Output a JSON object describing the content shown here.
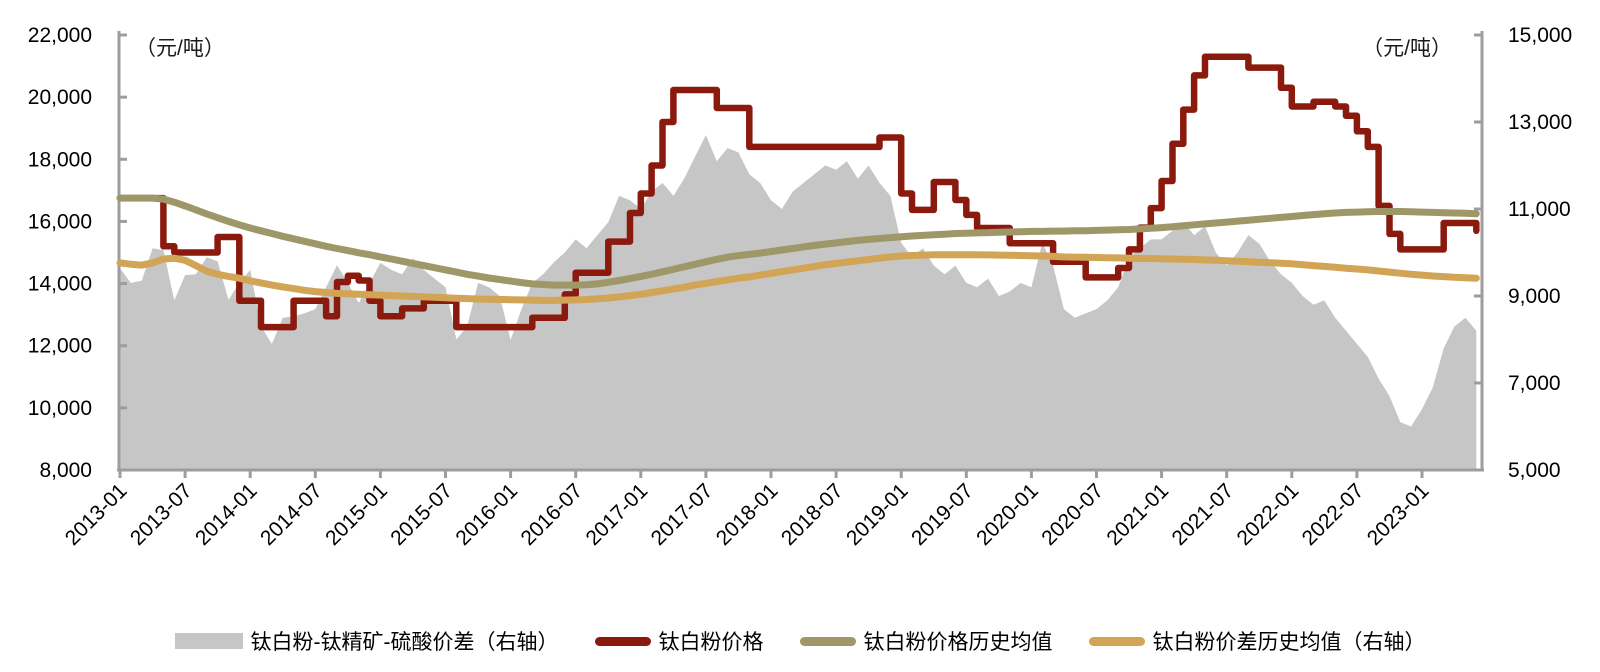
{
  "chart_data": {
    "type": "area+line",
    "title": "",
    "unit_label_left": "（元/吨）",
    "unit_label_right": "（元/吨）",
    "x_start": "2013-01",
    "x_end": "2023-06",
    "x_tick_interval_months": 6,
    "x_tick_labels": [
      "2013-01",
      "2013-07",
      "2014-01",
      "2014-07",
      "2015-01",
      "2015-07",
      "2016-01",
      "2016-07",
      "2017-01",
      "2017-07",
      "2018-01",
      "2018-07",
      "2019-01",
      "2019-07",
      "2020-01",
      "2020-07",
      "2021-01",
      "2021-07",
      "2022-01",
      "2022-07",
      "2023-01"
    ],
    "left_axis": {
      "min": 8000,
      "max": 22000,
      "tick_step": 2000,
      "tick_labels": [
        "22,000",
        "20,000",
        "18,000",
        "16,000",
        "14,000",
        "12,000",
        "10,000",
        "8,000"
      ]
    },
    "right_axis": {
      "min": 5000,
      "max": 15000,
      "tick_step": 2000,
      "tick_labels": [
        "15,000",
        "13,000",
        "11,000",
        "9,000",
        "7,000",
        "5,000"
      ]
    },
    "grid": "off",
    "legend_position": "bottom-center",
    "axis_color": "#9d9d9d",
    "series": [
      {
        "name": "钛白粉-钛精矿-硫酸价差（右轴）",
        "axis": "right",
        "style": "area",
        "color": "#c6c6c6",
        "values": [
          9640,
          9300,
          9350,
          10100,
          10050,
          8900,
          9480,
          9500,
          9890,
          9800,
          8910,
          9300,
          9600,
          8300,
          7900,
          8500,
          8530,
          8600,
          8700,
          9200,
          9710,
          9300,
          8840,
          9300,
          9760,
          9600,
          9500,
          9870,
          9600,
          9400,
          9200,
          8000,
          8300,
          9300,
          9200,
          9000,
          7990,
          8700,
          9300,
          9500,
          9780,
          10000,
          10300,
          10100,
          10400,
          10700,
          11300,
          11200,
          11000,
          11400,
          11600,
          11300,
          11700,
          12200,
          12700,
          12100,
          12400,
          12300,
          11800,
          11600,
          11200,
          11000,
          11400,
          11600,
          11800,
          12000,
          11900,
          12100,
          11700,
          12000,
          11600,
          11300,
          10220,
          9900,
          10100,
          9700,
          9500,
          9700,
          9300,
          9200,
          9400,
          9000,
          9100,
          9300,
          9200,
          10220,
          9700,
          8700,
          8500,
          8600,
          8700,
          8900,
          9200,
          9870,
          10100,
          10300,
          10300,
          10500,
          10700,
          10400,
          10600,
          10000,
          9700,
          10000,
          10400,
          10200,
          9800,
          9500,
          9300,
          9000,
          8800,
          8900,
          8500,
          8200,
          7900,
          7600,
          7100,
          6700,
          6100,
          6000,
          6400,
          6900,
          7800,
          8300,
          8500,
          8200
        ]
      },
      {
        "name": "钛白粉价格",
        "axis": "left",
        "style": "step",
        "color": "#8b1a0e",
        "values": [
          16750,
          16750,
          16750,
          16750,
          15200,
          15000,
          15000,
          15000,
          15000,
          15500,
          15500,
          13450,
          13450,
          12600,
          12600,
          12600,
          13450,
          13450,
          13450,
          12950,
          14050,
          14250,
          14100,
          13450,
          12950,
          12950,
          13200,
          13200,
          13450,
          13450,
          13450,
          12600,
          12600,
          12600,
          12600,
          12600,
          12600,
          12600,
          12900,
          12900,
          12900,
          13650,
          14350,
          14350,
          14350,
          15350,
          15350,
          16270,
          16900,
          17800,
          19200,
          20230,
          20230,
          20230,
          20230,
          19650,
          19650,
          19650,
          18400,
          18400,
          18400,
          18400,
          18400,
          18400,
          18400,
          18400,
          18400,
          18400,
          18400,
          18400,
          18700,
          18700,
          16900,
          16370,
          16370,
          17270,
          17270,
          16690,
          16210,
          15790,
          15790,
          15790,
          15300,
          15300,
          15300,
          15300,
          14700,
          14700,
          14700,
          14200,
          14200,
          14200,
          14500,
          15100,
          15800,
          16430,
          17300,
          18500,
          19600,
          20700,
          21300,
          21300,
          21300,
          21300,
          20950,
          20950,
          20950,
          20300,
          19700,
          19700,
          19850,
          19850,
          19700,
          19400,
          18900,
          18400,
          16500,
          15600,
          15100,
          15100,
          15100,
          15100,
          15950,
          15950,
          15950,
          15700
        ]
      },
      {
        "name": "钛白粉价格历史均值",
        "axis": "left",
        "style": "line",
        "color": "#9e9768",
        "values": [
          16750,
          16750,
          16750,
          16750,
          16720,
          16620,
          16500,
          16370,
          16240,
          16120,
          16000,
          15890,
          15790,
          15700,
          15610,
          15520,
          15440,
          15360,
          15280,
          15200,
          15130,
          15060,
          14990,
          14930,
          14860,
          14790,
          14720,
          14650,
          14580,
          14510,
          14440,
          14370,
          14300,
          14240,
          14180,
          14130,
          14080,
          14030,
          13990,
          13970,
          13950,
          13950,
          13950,
          13960,
          13990,
          14040,
          14100,
          14160,
          14230,
          14300,
          14380,
          14460,
          14540,
          14620,
          14700,
          14780,
          14850,
          14900,
          14940,
          14980,
          15030,
          15080,
          15130,
          15180,
          15230,
          15270,
          15310,
          15350,
          15390,
          15420,
          15450,
          15480,
          15510,
          15530,
          15550,
          15570,
          15590,
          15610,
          15620,
          15630,
          15640,
          15650,
          15660,
          15670,
          15680,
          15680,
          15690,
          15690,
          15700,
          15700,
          15710,
          15720,
          15730,
          15740,
          15760,
          15780,
          15800,
          15830,
          15860,
          15890,
          15920,
          15950,
          15980,
          16010,
          16040,
          16070,
          16100,
          16130,
          16160,
          16190,
          16220,
          16250,
          16270,
          16290,
          16300,
          16310,
          16320,
          16320,
          16320,
          16310,
          16300,
          16290,
          16280,
          16270,
          16260,
          16250
        ]
      },
      {
        "name": "钛白粉价差历史均值（右轴）",
        "axis": "right",
        "style": "line",
        "color": "#d2a456",
        "values": [
          9760,
          9730,
          9710,
          9760,
          9850,
          9870,
          9820,
          9700,
          9570,
          9500,
          9450,
          9410,
          9350,
          9300,
          9250,
          9210,
          9170,
          9130,
          9100,
          9080,
          9060,
          9050,
          9040,
          9030,
          9020,
          9010,
          9000,
          8990,
          8980,
          8970,
          8960,
          8950,
          8940,
          8930,
          8925,
          8920,
          8915,
          8910,
          8905,
          8900,
          8900,
          8905,
          8910,
          8920,
          8935,
          8955,
          8980,
          9010,
          9040,
          9080,
          9120,
          9160,
          9200,
          9250,
          9290,
          9330,
          9370,
          9410,
          9440,
          9480,
          9520,
          9560,
          9600,
          9640,
          9680,
          9720,
          9750,
          9780,
          9810,
          9840,
          9870,
          9900,
          9920,
          9930,
          9940,
          9950,
          9950,
          9950,
          9950,
          9950,
          9945,
          9940,
          9935,
          9930,
          9925,
          9920,
          9910,
          9900,
          9895,
          9890,
          9885,
          9880,
          9875,
          9870,
          9865,
          9860,
          9855,
          9850,
          9845,
          9840,
          9830,
          9820,
          9810,
          9800,
          9790,
          9775,
          9765,
          9755,
          9740,
          9720,
          9700,
          9680,
          9660,
          9640,
          9620,
          9600,
          9575,
          9550,
          9525,
          9500,
          9480,
          9460,
          9445,
          9430,
          9420,
          9410
        ]
      }
    ]
  },
  "legend": {
    "items": [
      {
        "label": "钛白粉-钛精矿-硫酸价差（右轴）"
      },
      {
        "label": "钛白粉价格"
      },
      {
        "label": "钛白粉价格历史均值"
      },
      {
        "label": "钛白粉价差历史均值（右轴）"
      }
    ]
  }
}
